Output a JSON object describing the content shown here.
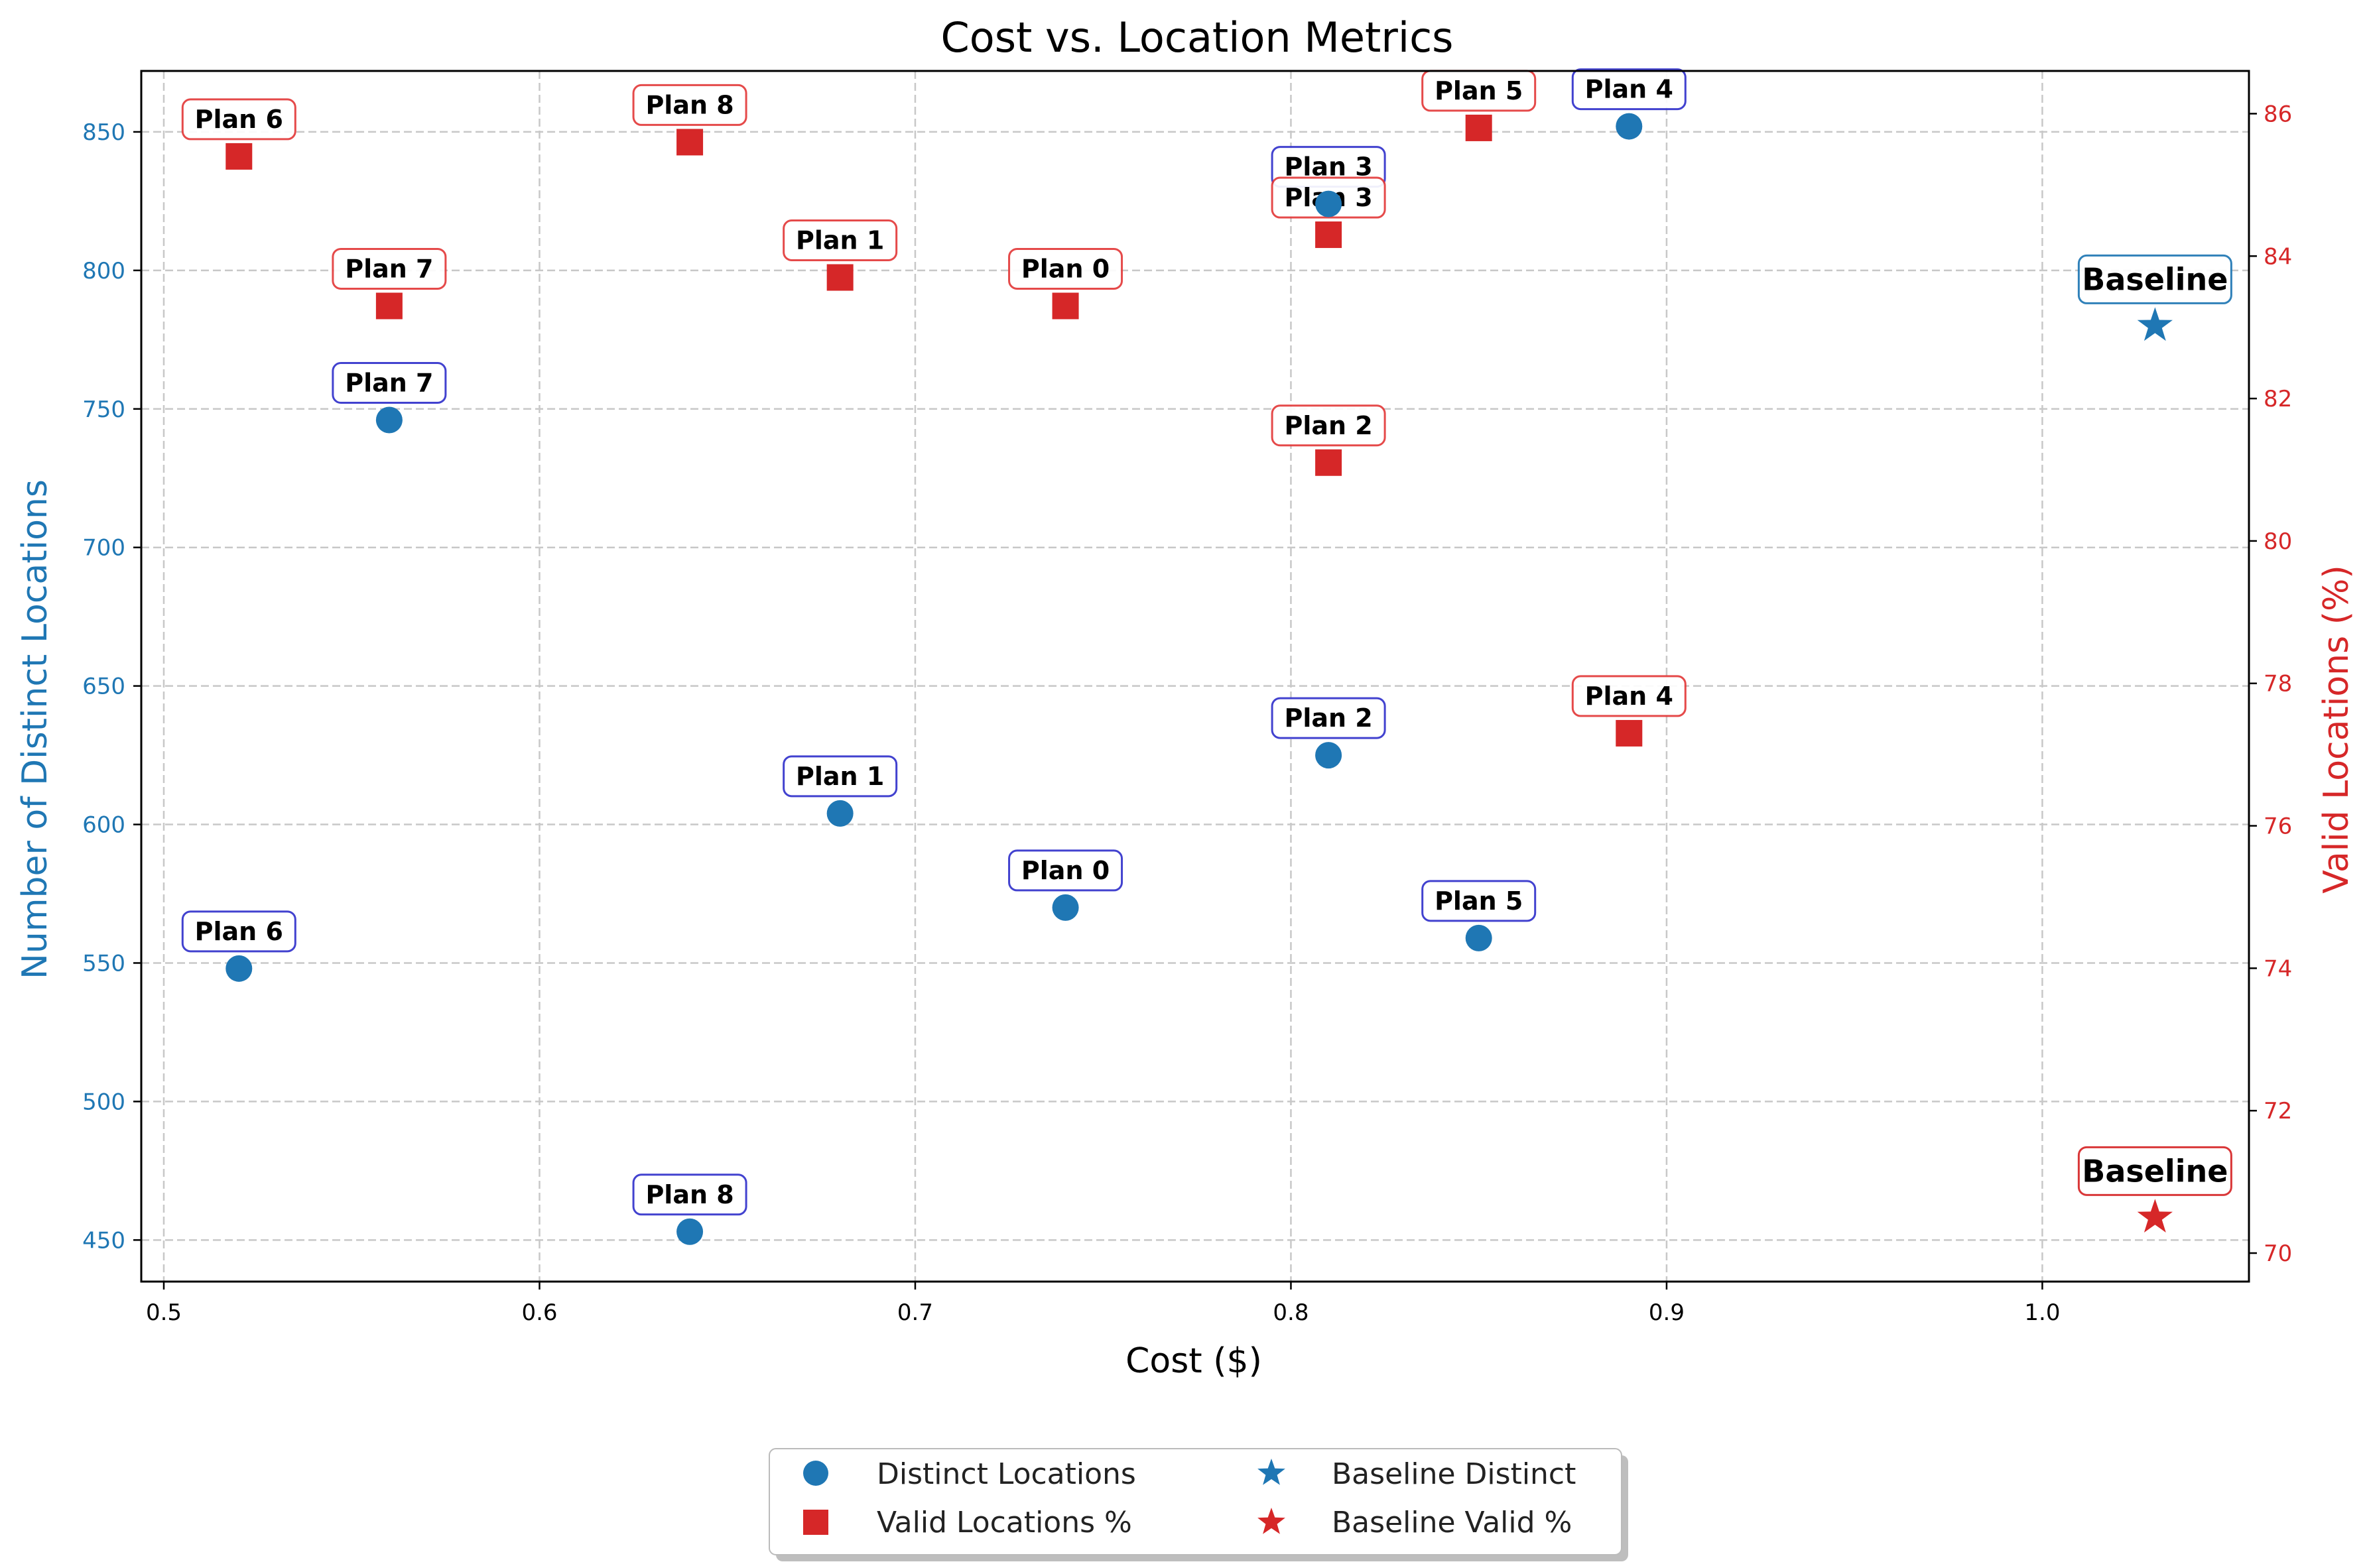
{
  "chart_data": {
    "type": "scatter",
    "title": "Cost vs. Location Metrics",
    "xlabel": "Cost ($)",
    "ylabel_left": "Number of Distinct Locations",
    "ylabel_right": "Valid Locations (%)",
    "xlim": [
      0.494,
      1.055
    ],
    "ylim_left": [
      435,
      872
    ],
    "ylim_right": [
      69.6,
      86.6
    ],
    "x_ticks": [
      0.5,
      0.6,
      0.7,
      0.8,
      0.9,
      1.0
    ],
    "y_ticks_left": [
      450,
      500,
      550,
      600,
      650,
      700,
      750,
      800,
      850
    ],
    "y_ticks_right": [
      70,
      72,
      74,
      76,
      78,
      80,
      82,
      84,
      86
    ],
    "grid": true,
    "legend_position": "bottom-center",
    "colors": {
      "distinct": "#1f77b4",
      "valid": "#d62728",
      "distinct_box": "#3333cc",
      "valid_box": "#e33b3b"
    },
    "labels": [
      "Plan 0",
      "Plan 1",
      "Plan 2",
      "Plan 3",
      "Plan 4",
      "Plan 5",
      "Plan 6",
      "Plan 7",
      "Plan 8"
    ],
    "cost": [
      0.74,
      0.68,
      0.81,
      0.81,
      0.89,
      0.85,
      0.52,
      0.56,
      0.64
    ],
    "distinct_locations": [
      570,
      604,
      625,
      824,
      852,
      559,
      548,
      746,
      453
    ],
    "valid_locations_pct": [
      83.3,
      83.7,
      81.1,
      84.3,
      77.3,
      85.8,
      85.4,
      83.3,
      85.6
    ],
    "baseline": {
      "label": "Baseline",
      "cost": 1.03,
      "distinct": 780,
      "valid_pct": 70.5
    },
    "legend": [
      "Distinct Locations",
      "Valid Locations %",
      "Baseline Distinct",
      "Baseline Valid %"
    ]
  }
}
